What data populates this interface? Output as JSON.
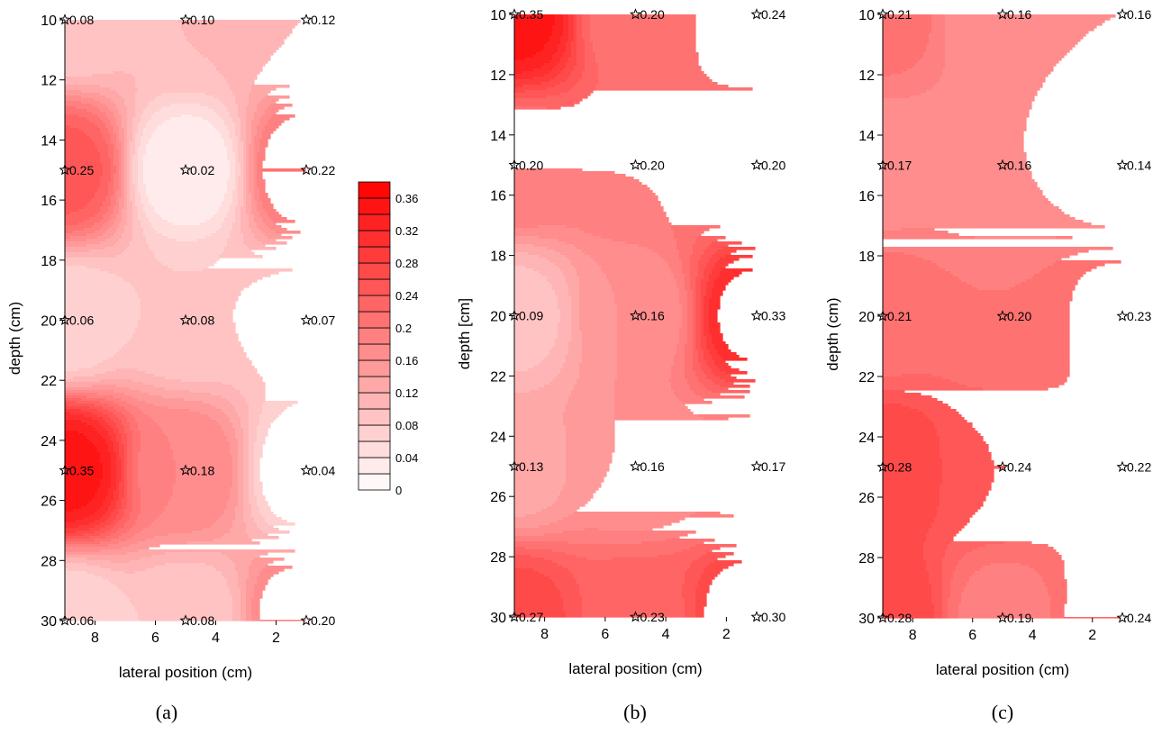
{
  "chart_data": [
    {
      "type": "heatmap",
      "panel_label": "(a)",
      "xlabel": "lateral position (cm)",
      "ylabel": "depth (cm)",
      "x_ticks": [
        "8",
        "6",
        "4",
        "2"
      ],
      "y_ticks": [
        "10",
        "12",
        "14",
        "16",
        "18",
        "20",
        "22",
        "24",
        "26",
        "28",
        "30"
      ],
      "xlim": [
        9,
        1
      ],
      "ylim": [
        10,
        30
      ],
      "x": [
        9,
        5,
        1
      ],
      "y": [
        10,
        15,
        20,
        25,
        30
      ],
      "point_labels": [
        [
          "0.08",
          "0.10",
          "0.12"
        ],
        [
          "0.25",
          "0.02",
          "0.22"
        ],
        [
          "0.06",
          "0.08",
          "0.07"
        ],
        [
          "0.35",
          "0.18",
          "0.04"
        ],
        [
          "0.06",
          "0.08",
          "0.20"
        ]
      ],
      "values": [
        [
          0.08,
          0.1,
          0.12
        ],
        [
          0.25,
          0.02,
          0.22
        ],
        [
          0.06,
          0.08,
          0.07
        ],
        [
          0.35,
          0.18,
          0.04
        ],
        [
          0.06,
          0.08,
          0.2
        ]
      ]
    },
    {
      "type": "heatmap",
      "panel_label": "(b)",
      "xlabel": "lateral position (cm)",
      "ylabel": "depth [cm]",
      "x_ticks": [
        "8",
        "6",
        "4",
        "2"
      ],
      "y_ticks": [
        "10",
        "12",
        "14",
        "16",
        "18",
        "20",
        "22",
        "24",
        "26",
        "28",
        "30"
      ],
      "xlim": [
        9,
        1
      ],
      "ylim": [
        10,
        30
      ],
      "x": [
        9,
        5,
        1
      ],
      "y": [
        10,
        15,
        20,
        25,
        30
      ],
      "point_labels": [
        [
          "0.35",
          "0.20",
          "0.24"
        ],
        [
          "0.20",
          "0.20",
          "0.20"
        ],
        [
          "0.09",
          "0.16",
          "0.33"
        ],
        [
          "0.13",
          "0.16",
          "0.17"
        ],
        [
          "0.27",
          "0.23",
          "0.30"
        ]
      ],
      "values": [
        [
          0.35,
          0.2,
          0.24
        ],
        [
          0.2,
          0.2,
          0.2
        ],
        [
          0.09,
          0.16,
          0.33
        ],
        [
          0.13,
          0.16,
          0.17
        ],
        [
          0.27,
          0.23,
          0.3
        ]
      ]
    },
    {
      "type": "heatmap",
      "panel_label": "(c)",
      "xlabel": "lateral position (cm)",
      "ylabel": "depth (cm)",
      "x_ticks": [
        "8",
        "6",
        "4",
        "2"
      ],
      "y_ticks": [
        "10",
        "12",
        "14",
        "16",
        "18",
        "20",
        "22",
        "24",
        "26",
        "28",
        "30"
      ],
      "xlim": [
        9,
        1
      ],
      "ylim": [
        10,
        30
      ],
      "x": [
        9,
        5,
        1
      ],
      "y": [
        10,
        15,
        20,
        25,
        30
      ],
      "point_labels": [
        [
          "0.21",
          "0.16",
          "0.16"
        ],
        [
          "0.17",
          "0.16",
          "0.14"
        ],
        [
          "0.21",
          "0.20",
          "0.23"
        ],
        [
          "0.28",
          "0.24",
          "0.22"
        ],
        [
          "0.28",
          "0.19",
          "0.24"
        ]
      ],
      "values": [
        [
          0.21,
          0.16,
          0.16
        ],
        [
          0.17,
          0.16,
          0.14
        ],
        [
          0.21,
          0.2,
          0.23
        ],
        [
          0.28,
          0.24,
          0.22
        ],
        [
          0.28,
          0.19,
          0.24
        ]
      ]
    }
  ],
  "colorbar": {
    "labels": [
      "0.36",
      "0.32",
      "0.28",
      "0.24",
      "0.2",
      "0.16",
      "0.12",
      "0.08",
      "0.04",
      "0"
    ],
    "range": [
      0,
      0.38
    ],
    "step": 0.02,
    "low_color": "#ffffff",
    "high_color": "#ff0000"
  },
  "marker_icon": "star-icon"
}
